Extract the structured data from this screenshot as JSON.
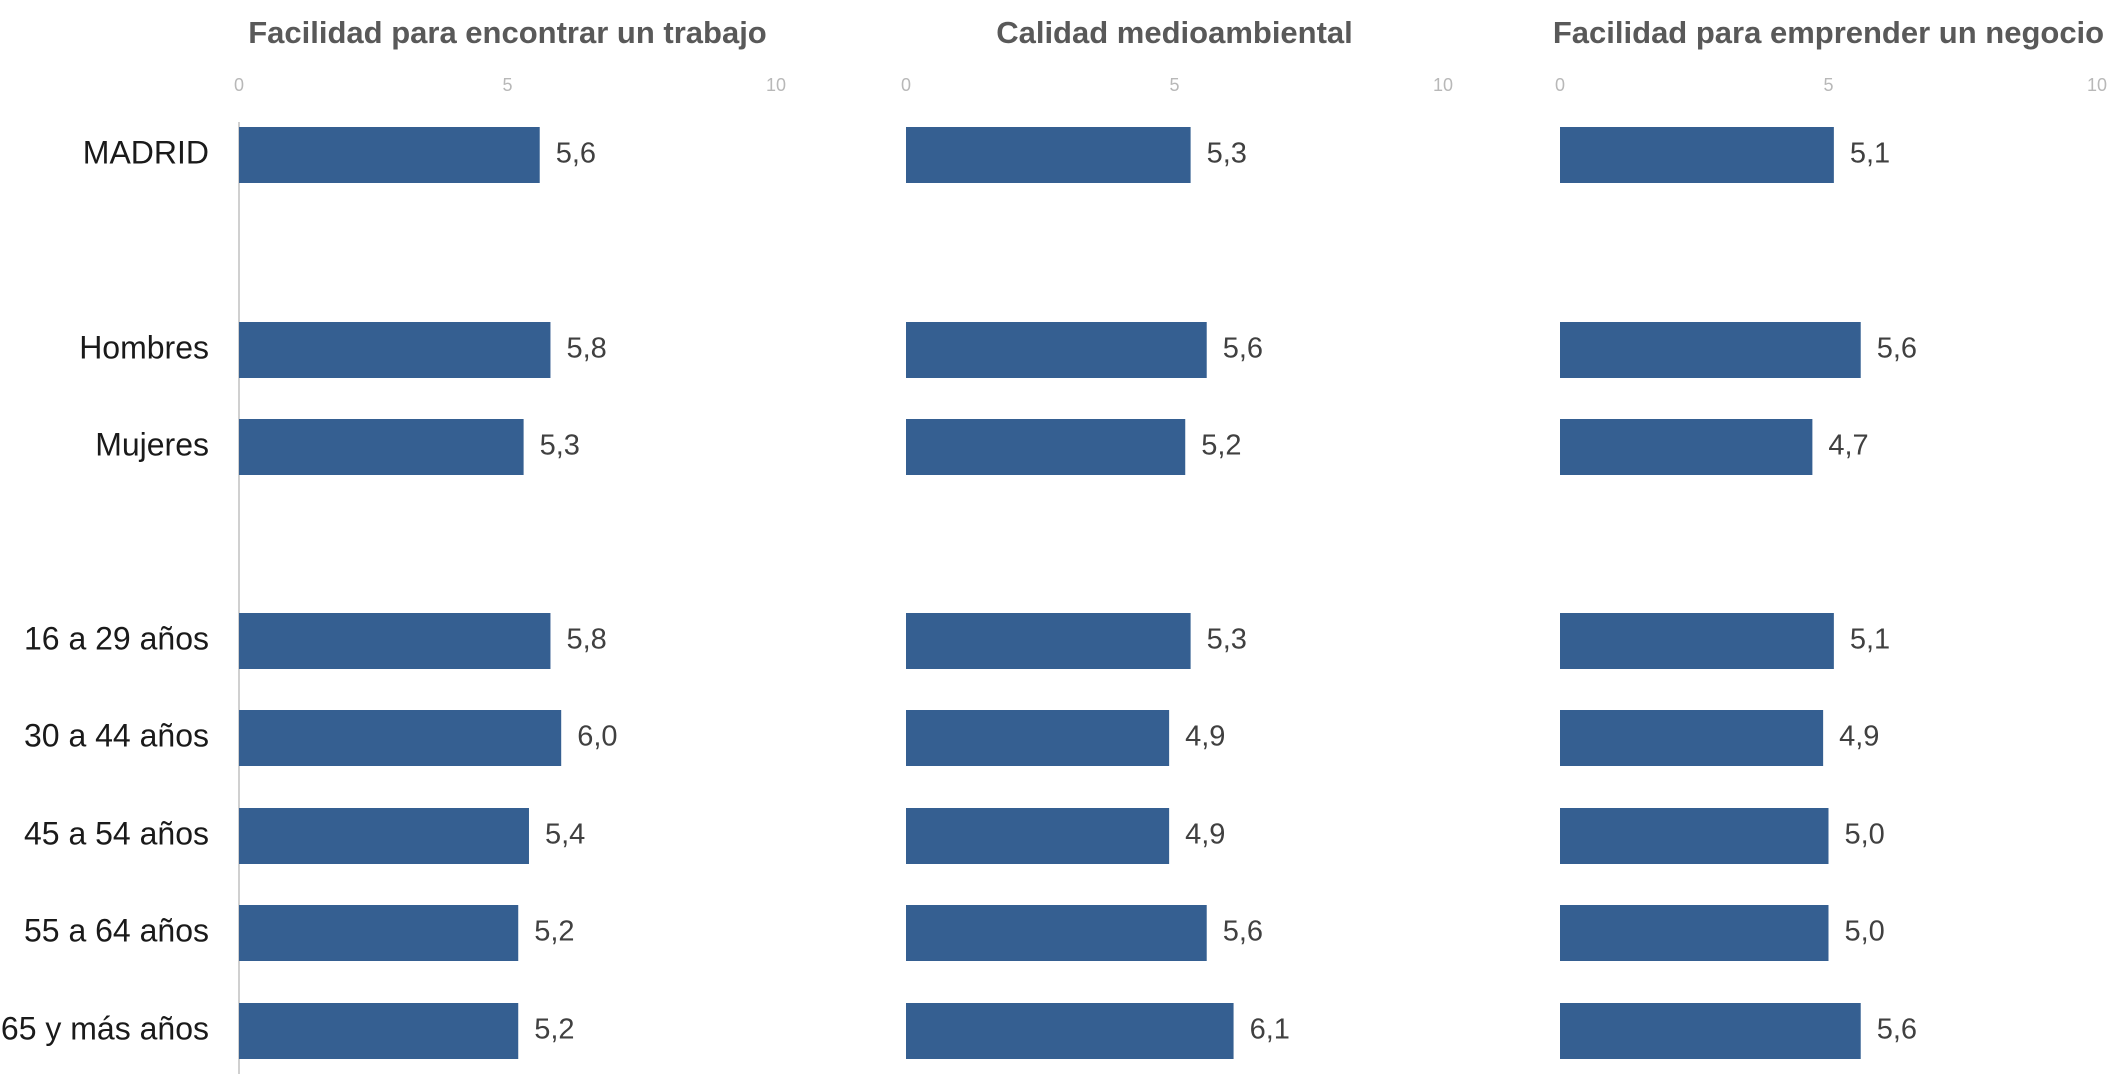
{
  "chart_data": {
    "type": "bar",
    "orientation": "horizontal",
    "categories": [
      "MADRID",
      "Hombres",
      "Mujeres",
      "16 a 29 años",
      "30 a 44 años",
      "45 a 54 años",
      "55 a 64 años",
      "65 y más años"
    ],
    "xlim": [
      0,
      10
    ],
    "ticks": [
      "0",
      "5",
      "10"
    ],
    "series": [
      {
        "name": "Facilidad para encontrar un trabajo",
        "values": [
          5.6,
          5.8,
          5.3,
          5.8,
          6.0,
          5.4,
          5.2,
          5.2
        ],
        "labels": [
          "5,6",
          "5,8",
          "5,3",
          "5,8",
          "6,0",
          "5,4",
          "5,2",
          "5,2"
        ]
      },
      {
        "name": "Calidad medioambiental",
        "values": [
          5.3,
          5.6,
          5.2,
          5.3,
          4.9,
          4.9,
          5.6,
          6.1
        ],
        "labels": [
          "5,3",
          "5,6",
          "5,2",
          "5,3",
          "4,9",
          "4,9",
          "5,6",
          "6,1"
        ]
      },
      {
        "name": "Facilidad para emprender un negocio",
        "values": [
          5.1,
          5.6,
          4.7,
          5.1,
          4.9,
          5.0,
          5.0,
          5.6
        ],
        "labels": [
          "5,1",
          "5,6",
          "4,7",
          "5,1",
          "4,9",
          "5,0",
          "5,0",
          "5,6"
        ]
      }
    ],
    "bar_color": "#355f91",
    "grid": false,
    "legend": "none"
  }
}
